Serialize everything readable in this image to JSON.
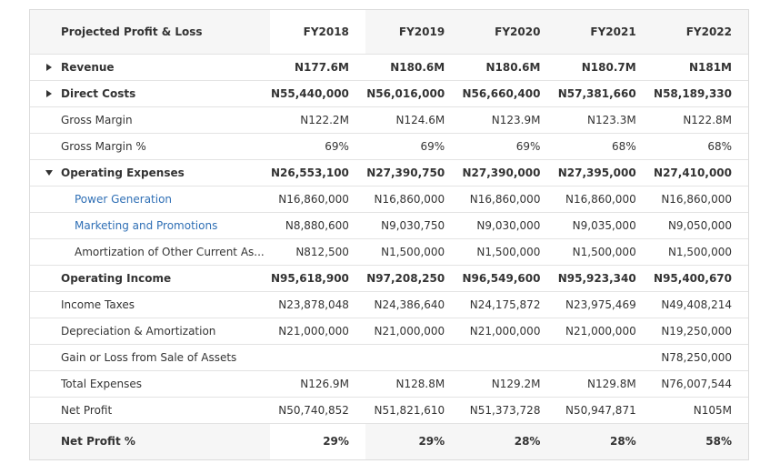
{
  "header": {
    "title": "Projected Profit & Loss",
    "years": [
      "FY2018",
      "FY2019",
      "FY2020",
      "FY2021",
      "FY2022"
    ]
  },
  "rows": [
    {
      "label": "Revenue",
      "values": [
        "N177.6M",
        "N180.6M",
        "N180.6M",
        "N180.7M",
        "N181M"
      ]
    },
    {
      "label": "Direct Costs",
      "values": [
        "N55,440,000",
        "N56,016,000",
        "N56,660,400",
        "N57,381,660",
        "N58,189,330"
      ]
    },
    {
      "label": "Gross Margin",
      "values": [
        "N122.2M",
        "N124.6M",
        "N123.9M",
        "N123.3M",
        "N122.8M"
      ]
    },
    {
      "label": "Gross Margin %",
      "values": [
        "69%",
        "69%",
        "69%",
        "68%",
        "68%"
      ]
    },
    {
      "label": "Operating Expenses",
      "values": [
        "N26,553,100",
        "N27,390,750",
        "N27,390,000",
        "N27,395,000",
        "N27,410,000"
      ]
    },
    {
      "label": "Power Generation",
      "values": [
        "N16,860,000",
        "N16,860,000",
        "N16,860,000",
        "N16,860,000",
        "N16,860,000"
      ]
    },
    {
      "label": "Marketing and Promotions",
      "values": [
        "N8,880,600",
        "N9,030,750",
        "N9,030,000",
        "N9,035,000",
        "N9,050,000"
      ]
    },
    {
      "label": "Amortization of Other Current As...",
      "values": [
        "N812,500",
        "N1,500,000",
        "N1,500,000",
        "N1,500,000",
        "N1,500,000"
      ]
    },
    {
      "label": "Operating Income",
      "values": [
        "N95,618,900",
        "N97,208,250",
        "N96,549,600",
        "N95,923,340",
        "N95,400,670"
      ]
    },
    {
      "label": "Income Taxes",
      "values": [
        "N23,878,048",
        "N24,386,640",
        "N24,175,872",
        "N23,975,469",
        "N49,408,214"
      ]
    },
    {
      "label": "Depreciation & Amortization",
      "values": [
        "N21,000,000",
        "N21,000,000",
        "N21,000,000",
        "N21,000,000",
        "N19,250,000"
      ]
    },
    {
      "label": "Gain or Loss from Sale of Assets",
      "values": [
        "",
        "",
        "",
        "",
        "N78,250,000"
      ]
    },
    {
      "label": "Total Expenses",
      "values": [
        "N126.9M",
        "N128.8M",
        "N129.2M",
        "N129.8M",
        "N76,007,544"
      ]
    },
    {
      "label": "Net Profit",
      "values": [
        "N50,740,852",
        "N51,821,610",
        "N51,373,728",
        "N50,947,871",
        "N105M"
      ]
    }
  ],
  "footer": {
    "label": "Net Profit %",
    "values": [
      "29%",
      "29%",
      "28%",
      "28%",
      "58%"
    ]
  }
}
